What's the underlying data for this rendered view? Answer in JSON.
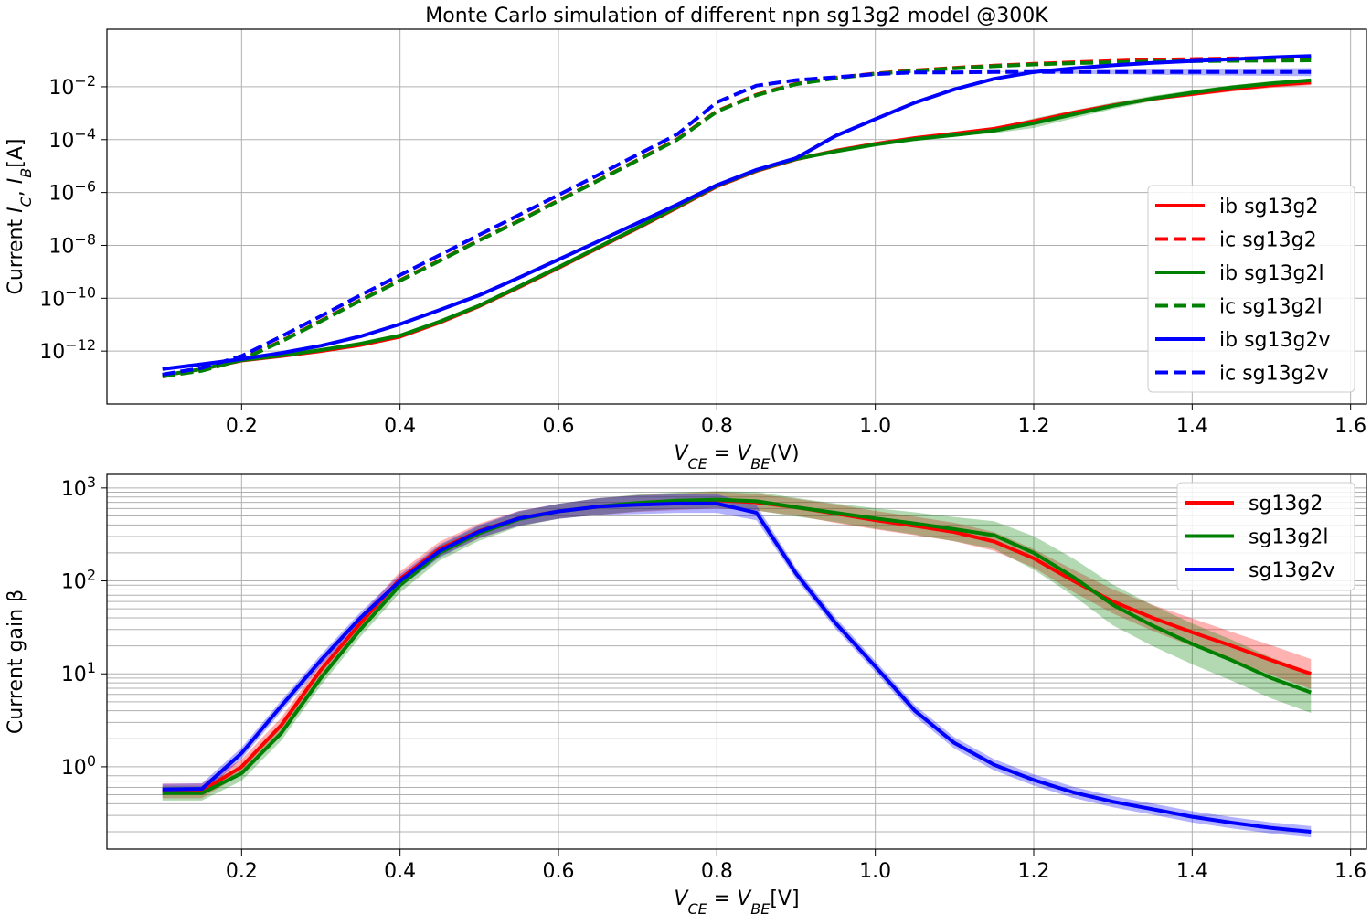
{
  "chart_data": [
    {
      "type": "line",
      "title": "Monte Carlo simulation of different npn sg13g2 model @300K",
      "xlabel": "V_CE = V_BE(V)",
      "ylabel": "Current I_C, I_B[A]",
      "yscale": "log",
      "xlim": [
        0.03,
        1.62
      ],
      "ylim": [
        1e-14,
        1.5
      ],
      "grid": true,
      "legend_position": "right",
      "xticks": [
        0.2,
        0.4,
        0.6,
        0.8,
        1.0,
        1.2,
        1.4,
        1.6
      ],
      "xtick_labels": [
        "0.2",
        "0.4",
        "0.6",
        "0.8",
        "1.0",
        "1.2",
        "1.4",
        "1.6"
      ],
      "yticks": [
        1e-12,
        1e-10,
        1e-08,
        1e-06,
        0.0001,
        0.01
      ],
      "ytick_labels": [
        {
          "base": "10",
          "exp": "−12"
        },
        {
          "base": "10",
          "exp": "−10"
        },
        {
          "base": "10",
          "exp": "−8"
        },
        {
          "base": "10",
          "exp": "−6"
        },
        {
          "base": "10",
          "exp": "−4"
        },
        {
          "base": "10",
          "exp": "−2"
        }
      ],
      "x": [
        0.1,
        0.15,
        0.2,
        0.25,
        0.3,
        0.35,
        0.4,
        0.45,
        0.5,
        0.55,
        0.6,
        0.65,
        0.7,
        0.75,
        0.8,
        0.85,
        0.9,
        0.95,
        1.0,
        1.05,
        1.1,
        1.15,
        1.2,
        1.25,
        1.3,
        1.35,
        1.4,
        1.45,
        1.5,
        1.55
      ],
      "series": [
        {
          "name": "ib sg13g2",
          "color": "#ff0000",
          "dash": false,
          "values": [
            1.2e-13,
            2.1e-13,
            4.4e-13,
            6.5e-13,
            1e-12,
            1.7e-12,
            3.5e-12,
            1.2e-11,
            5e-11,
            2.6e-10,
            1.4e-09,
            8e-09,
            4.5e-08,
            2.7e-07,
            1.7e-06,
            6.5e-06,
            1.8e-05,
            3.8e-05,
            7e-05,
            0.000115,
            0.00017,
            0.00026,
            0.0005,
            0.00105,
            0.002,
            0.0035,
            0.0053,
            0.008,
            0.0115,
            0.0145
          ],
          "spread": [
            0,
            0,
            0,
            0,
            0,
            0,
            0,
            0,
            0,
            0,
            0,
            0,
            0,
            0,
            0,
            0,
            0,
            0,
            0,
            0,
            0,
            0.02,
            0.04,
            0.05,
            0.06,
            0.07,
            0.08,
            0.09,
            0.1,
            0.1
          ]
        },
        {
          "name": "ic sg13g2",
          "color": "#ff0000",
          "dash": true,
          "values": [
            1.1e-13,
            1.9e-13,
            4.8e-13,
            2.4e-12,
            1.4e-11,
            8.5e-11,
            4.8e-10,
            2.7e-09,
            1.6e-08,
            8.5e-08,
            5e-07,
            2.9e-06,
            1.7e-05,
            0.000105,
            0.0012,
            0.005,
            0.013,
            0.022,
            0.032,
            0.042,
            0.052,
            0.063,
            0.074,
            0.085,
            0.095,
            0.105,
            0.112,
            0.118,
            0.122,
            0.125
          ],
          "spread": []
        },
        {
          "name": "ib sg13g2l",
          "color": "#008000",
          "dash": false,
          "values": [
            1.2e-13,
            2.1e-13,
            4.5e-13,
            6.8e-13,
            1.1e-12,
            1.9e-12,
            3.9e-12,
            1.3e-11,
            5.3e-11,
            2.8e-10,
            1.5e-09,
            8.5e-09,
            4.8e-08,
            2.9e-07,
            1.8e-06,
            6.8e-06,
            1.85e-05,
            3.6e-05,
            6.5e-05,
            0.000105,
            0.00015,
            0.00022,
            0.00042,
            0.0009,
            0.0019,
            0.0036,
            0.006,
            0.0095,
            0.0135,
            0.0175
          ],
          "spread": [
            0,
            0,
            0,
            0,
            0,
            0,
            0,
            0,
            0,
            0,
            0,
            0,
            0,
            0,
            0,
            0,
            0,
            0,
            0,
            0,
            0.05,
            0.1,
            0.18,
            0.15,
            0.12,
            0.1,
            0.09,
            0.08,
            0.08,
            0.07
          ]
        },
        {
          "name": "ic sg13g2l",
          "color": "#008000",
          "dash": true,
          "values": [
            1.1e-13,
            1.8e-13,
            4.7e-13,
            2.3e-12,
            1.35e-11,
            8.2e-11,
            4.6e-10,
            2.6e-09,
            1.55e-08,
            8.2e-08,
            4.8e-07,
            2.8e-06,
            1.65e-05,
            0.0001,
            0.00115,
            0.0048,
            0.0125,
            0.021,
            0.031,
            0.04,
            0.05,
            0.06,
            0.07,
            0.078,
            0.085,
            0.09,
            0.093,
            0.096,
            0.098,
            0.1
          ],
          "spread": []
        },
        {
          "name": "ib sg13g2v",
          "color": "#0000ff",
          "dash": false,
          "values": [
            2.1e-13,
            3.2e-13,
            5e-13,
            8.5e-13,
            1.6e-12,
            3.6e-12,
            1.05e-11,
            3.6e-11,
            1.3e-10,
            6e-10,
            2.9e-09,
            1.4e-08,
            7e-08,
            3.5e-07,
            1.9e-06,
            7.2e-06,
            2e-05,
            0.00014,
            0.0006,
            0.0025,
            0.008,
            0.02,
            0.036,
            0.05,
            0.065,
            0.08,
            0.095,
            0.11,
            0.13,
            0.145
          ],
          "spread": []
        },
        {
          "name": "ic sg13g2v",
          "color": "#0000ff",
          "dash": true,
          "values": [
            1.3e-13,
            2.3e-13,
            6.5e-13,
            3.6e-12,
            2.1e-11,
            1.3e-10,
            7.5e-10,
            4.3e-09,
            2.5e-08,
            1.4e-07,
            8e-07,
            4.6e-06,
            2.7e-05,
            0.00016,
            0.0026,
            0.011,
            0.018,
            0.023,
            0.03,
            0.035,
            0.035,
            0.036,
            0.036,
            0.036,
            0.036,
            0.036,
            0.036,
            0.036,
            0.036,
            0.036
          ],
          "spread": [
            0,
            0,
            0,
            0,
            0,
            0,
            0,
            0,
            0,
            0,
            0,
            0,
            0,
            0,
            0,
            0,
            0,
            0,
            0,
            0,
            0,
            0,
            0.04,
            0.06,
            0.08,
            0.1,
            0.12,
            0.13,
            0.14,
            0.15
          ]
        }
      ]
    },
    {
      "type": "line",
      "title": "",
      "xlabel": "V_CE = V_BE[V]",
      "ylabel": "Current gain β",
      "yscale": "log",
      "xlim": [
        0.03,
        1.62
      ],
      "ylim": [
        0.13,
        1400
      ],
      "grid": true,
      "minor_grid": true,
      "legend_position": "top-right",
      "xticks": [
        0.2,
        0.4,
        0.6,
        0.8,
        1.0,
        1.2,
        1.4,
        1.6
      ],
      "xtick_labels": [
        "0.2",
        "0.4",
        "0.6",
        "0.8",
        "1.0",
        "1.2",
        "1.4",
        "1.6"
      ],
      "yticks": [
        1,
        10,
        100,
        1000
      ],
      "ytick_labels": [
        {
          "base": "10",
          "exp": "0"
        },
        {
          "base": "10",
          "exp": "1"
        },
        {
          "base": "10",
          "exp": "2"
        },
        {
          "base": "10",
          "exp": "3"
        }
      ],
      "x": [
        0.1,
        0.15,
        0.2,
        0.25,
        0.3,
        0.35,
        0.4,
        0.45,
        0.5,
        0.55,
        0.6,
        0.65,
        0.7,
        0.75,
        0.8,
        0.85,
        0.9,
        0.95,
        1.0,
        1.05,
        1.1,
        1.15,
        1.2,
        1.25,
        1.3,
        1.35,
        1.4,
        1.45,
        1.5,
        1.55
      ],
      "series": [
        {
          "name": "sg13g2",
          "color": "#ff0000",
          "values": [
            0.55,
            0.55,
            1.0,
            2.8,
            11,
            35,
            105,
            220,
            345,
            470,
            560,
            630,
            680,
            710,
            740,
            700,
            620,
            530,
            450,
            390,
            335,
            265,
            175,
            100,
            60,
            40,
            28,
            20,
            14,
            10
          ],
          "spread": [
            0.08,
            0.08,
            0.08,
            0.08,
            0.08,
            0.08,
            0.08,
            0.08,
            0.08,
            0.08,
            0.08,
            0.09,
            0.09,
            0.09,
            0.09,
            0.09,
            0.09,
            0.1,
            0.1,
            0.1,
            0.1,
            0.1,
            0.1,
            0.12,
            0.13,
            0.14,
            0.15,
            0.15,
            0.16,
            0.16
          ]
        },
        {
          "name": "sg13g2l",
          "color": "#008000",
          "values": [
            0.52,
            0.52,
            0.85,
            2.3,
            9,
            30,
            90,
            200,
            325,
            460,
            560,
            630,
            690,
            730,
            750,
            720,
            620,
            540,
            470,
            415,
            360,
            310,
            200,
            110,
            55,
            33,
            21,
            14,
            9,
            6.3
          ],
          "spread": [
            0.08,
            0.08,
            0.08,
            0.08,
            0.08,
            0.08,
            0.08,
            0.08,
            0.08,
            0.08,
            0.08,
            0.09,
            0.09,
            0.09,
            0.09,
            0.1,
            0.1,
            0.1,
            0.11,
            0.12,
            0.13,
            0.15,
            0.18,
            0.2,
            0.22,
            0.22,
            0.22,
            0.22,
            0.22,
            0.22
          ]
        },
        {
          "name": "sg13g2v",
          "color": "#0000ff",
          "values": [
            0.57,
            0.58,
            1.4,
            4.5,
            14,
            40,
            100,
            210,
            340,
            470,
            560,
            630,
            660,
            680,
            680,
            540,
            120,
            35,
            12,
            4,
            1.8,
            1.05,
            0.72,
            0.53,
            0.42,
            0.35,
            0.29,
            0.25,
            0.22,
            0.2
          ],
          "spread": [
            0.06,
            0.06,
            0.06,
            0.06,
            0.06,
            0.06,
            0.07,
            0.07,
            0.07,
            0.08,
            0.08,
            0.09,
            0.1,
            0.1,
            0.1,
            0.08,
            0.06,
            0.06,
            0.06,
            0.06,
            0.06,
            0.06,
            0.06,
            0.06,
            0.06,
            0.06,
            0.06,
            0.06,
            0.06,
            0.06
          ]
        }
      ]
    }
  ]
}
